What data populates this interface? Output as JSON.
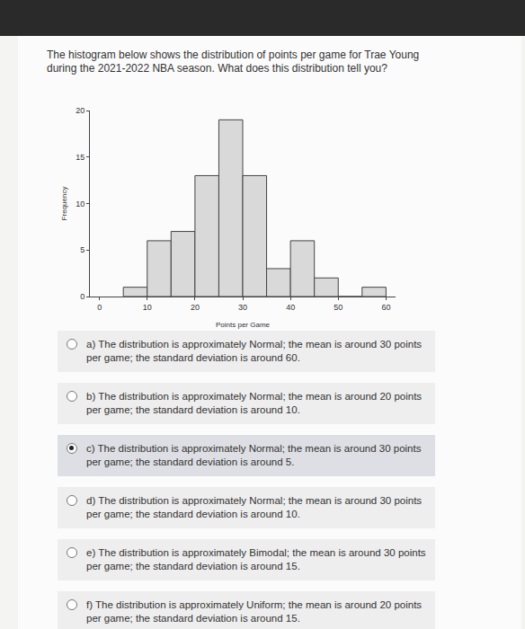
{
  "question": "The histogram below shows the distribution of points per game for Trae Young during the 2021-2022 NBA season. What does this distribution tell you?",
  "chart_data": {
    "type": "histogram",
    "x_label": "Points per Game",
    "y_label": "Frequency",
    "bins": [
      5,
      10,
      15,
      20,
      25,
      30,
      35,
      40,
      45,
      50,
      55,
      60
    ],
    "values": [
      1,
      6,
      7,
      13,
      19,
      13,
      3,
      6,
      2,
      0,
      1
    ],
    "color": "#d9d9d9",
    "xlim": [
      -2,
      62
    ],
    "xticks": [
      0,
      10,
      20,
      30,
      40,
      50,
      60
    ],
    "ylim": [
      0,
      20
    ],
    "yticks": [
      0,
      5,
      10,
      15,
      20
    ],
    "grid": false
  },
  "options": [
    {
      "label": "a)",
      "text": "The distribution is approximately Normal; the mean is around 30 points per game; the standard deviation is around 60."
    },
    {
      "label": "b)",
      "text": "The distribution is approximately Normal; the mean is around 20 points per game; the standard deviation is around 10."
    },
    {
      "label": "c)",
      "text": "The distribution is approximately Normal; the mean is around 30 points per game; the standard deviation is around 5."
    },
    {
      "label": "d)",
      "text": "The distribution is approximately Normal; the mean is around 30 points per game; the standard deviation is around 10."
    },
    {
      "label": "e)",
      "text": "The distribution is approximately Bimodal; the mean is around 30 points per game; the standard deviation is around 15."
    },
    {
      "label": "f)",
      "text": "The distribution is approximately Uniform; the mean is around 20 points per game; the standard deviation is around 15."
    }
  ],
  "selected": "c)"
}
